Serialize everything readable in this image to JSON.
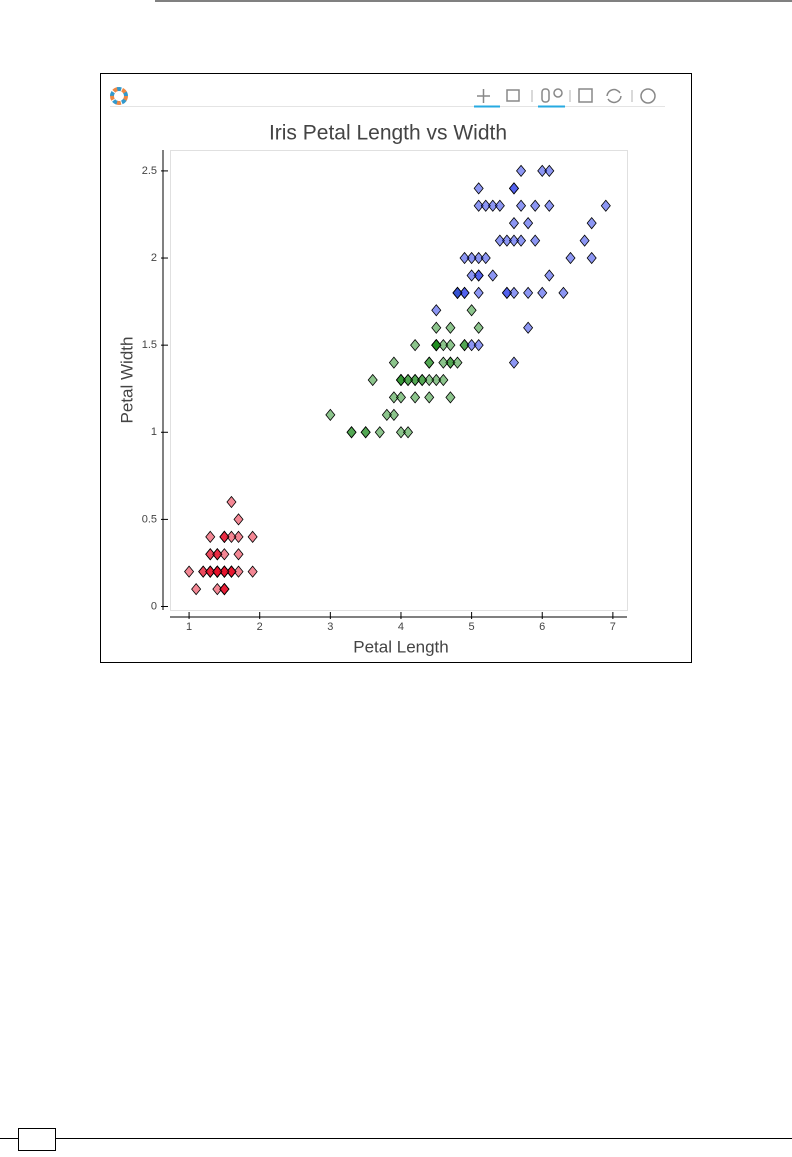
{
  "chart_data": {
    "type": "scatter",
    "title": "Iris Petal Length vs Width",
    "x_label": "Petal Length",
    "y_label": "Petal Width",
    "xlim": [
      0.73,
      7.2
    ],
    "ylim": [
      -0.02,
      2.62
    ],
    "xticks": [
      1,
      2,
      3,
      4,
      5,
      6,
      7
    ],
    "yticks": [
      0,
      0.5,
      1,
      1.5,
      2,
      2.5
    ],
    "marker": "diamond",
    "opacity": 0.5,
    "series": [
      {
        "color": "#e8102a",
        "x": [
          1.4,
          1.4,
          1.3,
          1.5,
          1.4,
          1.7,
          1.4,
          1.5,
          1.4,
          1.5,
          1.5,
          1.6,
          1.4,
          1.1,
          1.2,
          1.5,
          1.3,
          1.4,
          1.7,
          1.5,
          1.7,
          1.5,
          1.0,
          1.7,
          1.9,
          1.6,
          1.6,
          1.5,
          1.4,
          1.6,
          1.6,
          1.5,
          1.5,
          1.4,
          1.5,
          1.2,
          1.3,
          1.5,
          1.3,
          1.5,
          1.3,
          1.3,
          1.3,
          1.6,
          1.9,
          1.4,
          1.6,
          1.4,
          1.5,
          1.4
        ],
        "values": [
          0.2,
          0.2,
          0.2,
          0.2,
          0.2,
          0.4,
          0.3,
          0.2,
          0.2,
          0.1,
          0.2,
          0.2,
          0.1,
          0.1,
          0.2,
          0.4,
          0.4,
          0.3,
          0.3,
          0.3,
          0.2,
          0.4,
          0.2,
          0.5,
          0.2,
          0.2,
          0.4,
          0.2,
          0.2,
          0.2,
          0.2,
          0.4,
          0.1,
          0.2,
          0.1,
          0.2,
          0.2,
          0.1,
          0.2,
          0.2,
          0.3,
          0.3,
          0.2,
          0.6,
          0.4,
          0.3,
          0.2,
          0.2,
          0.2,
          0.2
        ]
      },
      {
        "color": "#1a8a1a",
        "x": [
          4.7,
          4.5,
          4.9,
          4.0,
          4.6,
          4.5,
          4.7,
          3.3,
          4.6,
          3.9,
          3.5,
          4.2,
          4.0,
          4.7,
          3.6,
          4.4,
          4.5,
          4.1,
          4.5,
          3.9,
          4.8,
          4.0,
          4.9,
          4.7,
          4.3,
          4.4,
          4.8,
          5.0,
          4.5,
          3.5,
          3.8,
          3.7,
          3.9,
          5.1,
          4.5,
          4.5,
          4.7,
          4.4,
          4.1,
          4.0,
          4.4,
          4.6,
          4.0,
          3.3,
          4.2,
          4.2,
          4.2,
          4.3,
          3.0,
          4.1
        ],
        "values": [
          1.4,
          1.5,
          1.5,
          1.3,
          1.5,
          1.3,
          1.6,
          1.0,
          1.3,
          1.4,
          1.0,
          1.5,
          1.0,
          1.4,
          1.3,
          1.4,
          1.5,
          1.0,
          1.5,
          1.1,
          1.8,
          1.3,
          1.5,
          1.2,
          1.3,
          1.4,
          1.4,
          1.7,
          1.5,
          1.0,
          1.1,
          1.0,
          1.2,
          1.6,
          1.5,
          1.6,
          1.5,
          1.3,
          1.3,
          1.3,
          1.2,
          1.4,
          1.2,
          1.0,
          1.3,
          1.2,
          1.3,
          1.3,
          1.1,
          1.3
        ]
      },
      {
        "color": "#1a2ee8",
        "x": [
          6.0,
          5.1,
          5.9,
          5.6,
          5.8,
          6.6,
          4.5,
          6.3,
          5.8,
          6.1,
          5.1,
          5.3,
          5.5,
          5.0,
          5.1,
          5.3,
          5.5,
          6.7,
          6.9,
          5.0,
          5.7,
          4.9,
          6.7,
          4.9,
          5.7,
          6.0,
          4.8,
          4.9,
          5.6,
          5.8,
          6.1,
          6.4,
          5.6,
          5.1,
          5.6,
          6.1,
          5.6,
          5.5,
          4.8,
          5.4,
          5.6,
          5.1,
          5.1,
          5.9,
          5.7,
          5.2,
          5.0,
          5.2,
          5.4,
          5.1
        ],
        "values": [
          2.5,
          1.9,
          2.1,
          1.8,
          2.2,
          2.1,
          1.7,
          1.8,
          1.8,
          2.5,
          2.0,
          1.9,
          2.1,
          2.0,
          2.4,
          2.3,
          1.8,
          2.2,
          2.3,
          1.5,
          2.3,
          2.0,
          2.0,
          1.8,
          2.1,
          1.8,
          1.8,
          1.8,
          2.1,
          1.6,
          1.9,
          2.0,
          2.2,
          1.5,
          1.4,
          2.3,
          2.4,
          1.8,
          1.8,
          2.1,
          2.4,
          2.3,
          1.9,
          2.3,
          2.5,
          2.3,
          1.9,
          2.0,
          2.3,
          1.8
        ]
      }
    ]
  }
}
